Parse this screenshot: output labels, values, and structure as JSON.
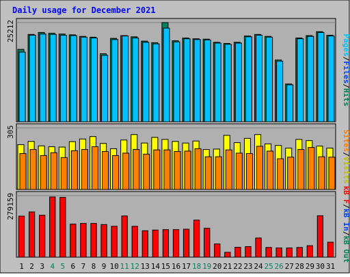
{
  "chart_data": [
    {
      "type": "bar",
      "title": "Daily usage for December 2021",
      "panel": "hits-files-pages",
      "ymax_label": "25212",
      "ylim": [
        0,
        25212
      ],
      "right_axis_label": [
        "Pages",
        "/",
        "Files",
        "/",
        "Hits"
      ],
      "categories": [
        "1",
        "2",
        "3",
        "4",
        "5",
        "6",
        "7",
        "8",
        "9",
        "10",
        "11",
        "12",
        "13",
        "14",
        "15",
        "16",
        "17",
        "18",
        "19",
        "20",
        "21",
        "22",
        "23",
        "24",
        "25",
        "26",
        "27",
        "28",
        "29",
        "30",
        "31"
      ],
      "weekend_days": [
        "4",
        "5",
        "11",
        "12",
        "18",
        "19",
        "25",
        "26"
      ],
      "series": [
        {
          "name": "Hits",
          "values": [
            18400,
            22200,
            22700,
            22500,
            22300,
            22100,
            21700,
            21500,
            17300,
            21200,
            21900,
            21600,
            20500,
            20100,
            25212,
            20600,
            21300,
            21100,
            21000,
            20200,
            19900,
            20200,
            21800,
            22200,
            21700,
            15700,
            9600,
            21300,
            21900,
            22900,
            22000
          ]
        },
        {
          "name": "Files",
          "values": [
            17700,
            22000,
            22300,
            22200,
            22000,
            21900,
            21500,
            21300,
            16900,
            20900,
            21800,
            21300,
            20200,
            19800,
            23800,
            20300,
            21100,
            20900,
            20800,
            20000,
            19700,
            20000,
            21600,
            22000,
            21500,
            15400,
            9400,
            21100,
            21700,
            22700,
            21800
          ]
        }
      ]
    },
    {
      "type": "bar",
      "panel": "visits-sites",
      "ymax_label": "305",
      "ylim": [
        0,
        305
      ],
      "right_axis_label": [
        "Sites",
        "/",
        "Visits"
      ],
      "series": [
        {
          "name": "Visits",
          "values": [
            222,
            238,
            216,
            212,
            210,
            237,
            250,
            262,
            228,
            202,
            245,
            272,
            230,
            258,
            248,
            238,
            230,
            240,
            198,
            200,
            268,
            232,
            253,
            272,
            226,
            218,
            205,
            248,
            242,
            215,
            205
          ]
        },
        {
          "name": "Sites",
          "values": [
            178,
            198,
            168,
            182,
            158,
            192,
            198,
            212,
            188,
            168,
            180,
            198,
            175,
            196,
            196,
            188,
            190,
            202,
            162,
            162,
            196,
            180,
            178,
            214,
            190,
            152,
            160,
            198,
            208,
            162,
            160
          ]
        }
      ]
    },
    {
      "type": "bar",
      "panel": "kbytes",
      "ymax_label": "279159",
      "ylim": [
        0,
        279159
      ],
      "right_axis_label": [
        "kB F",
        "/",
        "kB In",
        "/",
        "kB Out"
      ],
      "series": [
        {
          "name": "kB F",
          "values": [
            186000,
            205000,
            190000,
            273000,
            271000,
            150000,
            153000,
            153000,
            148000,
            140000,
            187000,
            140000,
            120000,
            123000,
            125000,
            125000,
            127000,
            168000,
            131000,
            60000,
            22000,
            45000,
            48000,
            87000,
            44000,
            42000,
            42000,
            44000,
            52000,
            188000,
            68000
          ]
        }
      ]
    }
  ],
  "colors": {
    "frame_bg": "#c0c0c0",
    "plot_bg": "#b0b0b0",
    "title": "#0000ff",
    "hits": "#00805c",
    "files": "#0040ff",
    "pages": "#00c0ff",
    "visits": "#ffff00",
    "sites": "#ff8000",
    "kbytes": "#ff0000",
    "weekday_label": "#000000",
    "weekend_label": "#00805c"
  }
}
